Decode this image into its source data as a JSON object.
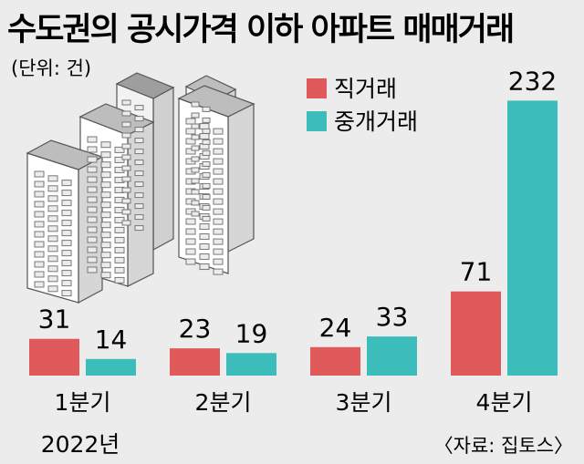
{
  "chart_data": {
    "type": "bar",
    "title": "수도권의 공시가격 이하 아파트 매매거래",
    "unit": "(단위: 건)",
    "categories": [
      "1분기",
      "2분기",
      "3분기",
      "4분기"
    ],
    "year_label": "2022년",
    "series": [
      {
        "name": "직거래",
        "values": [
          31,
          23,
          24,
          71
        ]
      },
      {
        "name": "중개거래",
        "values": [
          14,
          19,
          33,
          232
        ]
      }
    ],
    "source": "〈자료: 집토스〉",
    "grid": false,
    "legend_placement": "top-right",
    "colors": {
      "직거래": "#e05a5c",
      "중개거래": "#3dbcbc",
      "background": "#ececec"
    }
  }
}
